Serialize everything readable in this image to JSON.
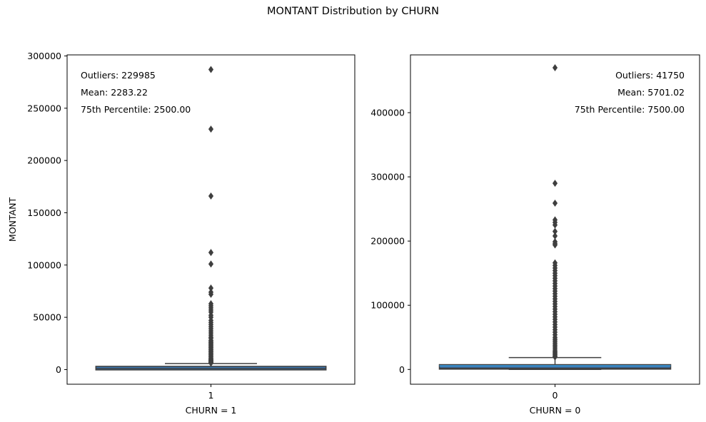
{
  "figure": {
    "title": "MONTANT Distribution by CHURN"
  },
  "chart_data": [
    {
      "type": "box",
      "category": "1",
      "xlabel": "CHURN = 1",
      "ylabel": "MONTANT",
      "ylim": [
        -14000,
        301000
      ],
      "yticks": [
        0,
        50000,
        100000,
        150000,
        200000,
        250000,
        300000
      ],
      "ytick_labels": [
        "0",
        "50000",
        "100000",
        "150000",
        "200000",
        "250000",
        "300000"
      ],
      "box": {
        "q1": 300,
        "median": 1000,
        "q3": 2500,
        "whisker_low": 0,
        "whisker_high": 5800,
        "mean_line": null
      },
      "outliers": [
        287000,
        230000,
        166000,
        112000,
        101000,
        78000,
        74000,
        72000,
        63000,
        61000,
        59000,
        57000,
        55000,
        52000,
        50000,
        47000,
        45000,
        43000,
        41000,
        39000,
        37000,
        35000,
        33000,
        31000,
        30000,
        28000,
        27000,
        26000,
        25000,
        24000,
        23000,
        22000,
        21000,
        20000,
        19000,
        18000,
        17000,
        16000,
        15000,
        14000,
        13000,
        12000,
        11000,
        10000,
        9500,
        9000,
        8500,
        8000,
        7500,
        7000,
        6600,
        6200
      ],
      "annotations": [
        "Outliers: 229985",
        "Mean: 2283.22",
        "75th Percentile: 2500.00"
      ],
      "annotation_position": "top-left"
    },
    {
      "type": "box",
      "category": "0",
      "xlabel": "CHURN = 0",
      "ylabel": "",
      "ylim": [
        -23000,
        490000
      ],
      "yticks": [
        0,
        100000,
        200000,
        300000,
        400000
      ],
      "ytick_labels": [
        "0",
        "100000",
        "200000",
        "300000",
        "400000"
      ],
      "box": {
        "q1": 500,
        "median": 2000,
        "q3": 7500,
        "whisker_low": 0,
        "whisker_high": 18500,
        "mean_line": 5701.02
      },
      "outliers": [
        470000,
        290000,
        259000,
        233000,
        229000,
        225000,
        215000,
        208000,
        199000,
        196000,
        194000,
        166000,
        162000,
        158000,
        154000,
        150000,
        146000,
        142000,
        138000,
        134000,
        130000,
        126000,
        122000,
        118000,
        114000,
        110000,
        106000,
        102000,
        98000,
        94000,
        90000,
        86000,
        82000,
        78000,
        74000,
        70000,
        66000,
        62000,
        58000,
        54000,
        50000,
        47000,
        44000,
        41000,
        38000,
        35000,
        32000,
        29000,
        27000,
        25000,
        23000,
        21000,
        19500
      ],
      "annotations": [
        "Outliers: 41750",
        "Mean: 5701.02",
        "75th Percentile: 7500.00"
      ],
      "annotation_position": "top-right"
    }
  ],
  "colors": {
    "box_fill": "#3a75af",
    "box_edge": "#3f3f3f",
    "outlier": "#3f3f3f",
    "mean_line": "#3a9ad9"
  }
}
